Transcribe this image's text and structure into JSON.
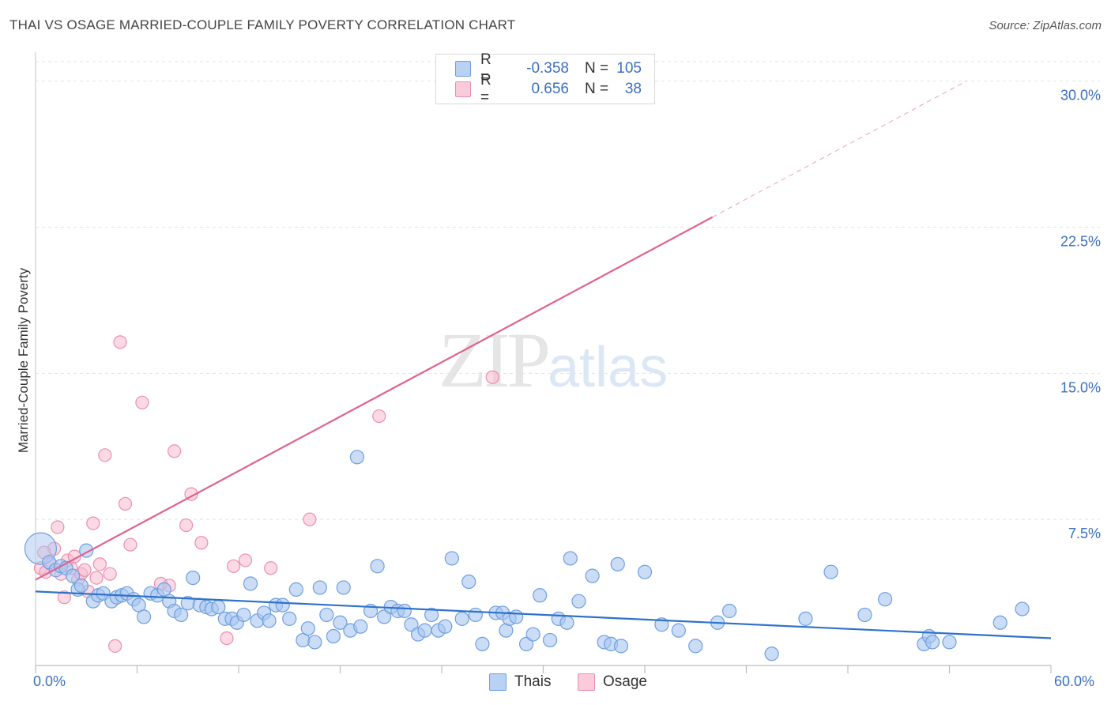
{
  "header": {
    "title": "THAI VS OSAGE MARRIED-COUPLE FAMILY POVERTY CORRELATION CHART",
    "source": "Source: ZipAtlas.com"
  },
  "watermark": {
    "zip": "ZIP",
    "atlas": "atlas"
  },
  "colors": {
    "thais_fill": "#a9c6f0",
    "thais_stroke": "#6e9fe0",
    "thais_line": "#2f72c9",
    "osage_fill": "#f8bcd0",
    "osage_stroke": "#eb8fae",
    "osage_line": "#e0628f",
    "tick_label": "#3a6fc4",
    "grid": "#e3e3e3"
  },
  "legend": {
    "rows": [
      {
        "series": "Thais",
        "r_label": "R =",
        "r_value": "-0.358",
        "n_label": "N =",
        "n_value": "105"
      },
      {
        "series": "Osage",
        "r_label": "R =",
        "r_value": "0.656",
        "n_label": "N =",
        "n_value": "38"
      }
    ]
  },
  "bottom_legend": {
    "thais": "Thais",
    "osage": "Osage"
  },
  "chart_data": {
    "type": "scatter",
    "title": "THAI VS OSAGE MARRIED-COUPLE FAMILY POVERTY CORRELATION CHART",
    "xlabel": "",
    "ylabel": "Married-Couple Family Poverty",
    "xlim": [
      0,
      60
    ],
    "ylim": [
      0,
      31
    ],
    "x_tick_labels": [
      "0.0%",
      "60.0%"
    ],
    "y_ticks": [
      7.5,
      15.0,
      22.5,
      30.0
    ],
    "y_tick_labels": [
      "7.5%",
      "15.0%",
      "22.5%",
      "30.0%"
    ],
    "grid": true,
    "series": [
      {
        "name": "Thais",
        "r": -0.358,
        "n": 105,
        "trend": {
          "x0": 0,
          "y0": 3.8,
          "x1": 60,
          "y1": 1.4,
          "dashed_from": null
        },
        "points": [
          {
            "x": 0.3,
            "y": 6.0,
            "big": true
          },
          {
            "x": 0.8,
            "y": 5.3
          },
          {
            "x": 1.2,
            "y": 4.9
          },
          {
            "x": 1.5,
            "y": 5.1
          },
          {
            "x": 1.8,
            "y": 5.0
          },
          {
            "x": 2.2,
            "y": 4.6
          },
          {
            "x": 2.5,
            "y": 3.9
          },
          {
            "x": 2.7,
            "y": 4.1
          },
          {
            "x": 3.0,
            "y": 5.9
          },
          {
            "x": 3.4,
            "y": 3.3
          },
          {
            "x": 3.7,
            "y": 3.6
          },
          {
            "x": 4.0,
            "y": 3.7
          },
          {
            "x": 4.5,
            "y": 3.3
          },
          {
            "x": 4.8,
            "y": 3.5
          },
          {
            "x": 5.1,
            "y": 3.6
          },
          {
            "x": 5.4,
            "y": 3.7
          },
          {
            "x": 5.8,
            "y": 3.4
          },
          {
            "x": 6.1,
            "y": 3.1
          },
          {
            "x": 6.4,
            "y": 2.5
          },
          {
            "x": 6.8,
            "y": 3.7
          },
          {
            "x": 7.2,
            "y": 3.6
          },
          {
            "x": 7.6,
            "y": 3.9
          },
          {
            "x": 7.9,
            "y": 3.3
          },
          {
            "x": 8.2,
            "y": 2.8
          },
          {
            "x": 8.6,
            "y": 2.6
          },
          {
            "x": 9.0,
            "y": 3.2
          },
          {
            "x": 9.3,
            "y": 4.5
          },
          {
            "x": 9.7,
            "y": 3.1
          },
          {
            "x": 10.1,
            "y": 3.0
          },
          {
            "x": 10.4,
            "y": 2.9
          },
          {
            "x": 10.8,
            "y": 3.0
          },
          {
            "x": 11.2,
            "y": 2.4
          },
          {
            "x": 11.6,
            "y": 2.4
          },
          {
            "x": 11.9,
            "y": 2.2
          },
          {
            "x": 12.3,
            "y": 2.6
          },
          {
            "x": 12.7,
            "y": 4.2
          },
          {
            "x": 13.1,
            "y": 2.3
          },
          {
            "x": 13.5,
            "y": 2.7
          },
          {
            "x": 13.8,
            "y": 2.3
          },
          {
            "x": 14.2,
            "y": 3.1
          },
          {
            "x": 14.6,
            "y": 3.1
          },
          {
            "x": 15.0,
            "y": 2.4
          },
          {
            "x": 15.4,
            "y": 3.9
          },
          {
            "x": 15.8,
            "y": 1.3
          },
          {
            "x": 16.1,
            "y": 1.9
          },
          {
            "x": 16.5,
            "y": 1.2
          },
          {
            "x": 16.8,
            "y": 4.0
          },
          {
            "x": 17.2,
            "y": 2.6
          },
          {
            "x": 17.6,
            "y": 1.5
          },
          {
            "x": 18.0,
            "y": 2.2
          },
          {
            "x": 18.2,
            "y": 4.0
          },
          {
            "x": 18.6,
            "y": 1.8
          },
          {
            "x": 19.2,
            "y": 2.0
          },
          {
            "x": 19.8,
            "y": 2.8
          },
          {
            "x": 20.2,
            "y": 5.1
          },
          {
            "x": 20.6,
            "y": 2.5
          },
          {
            "x": 21.0,
            "y": 3.0
          },
          {
            "x": 21.4,
            "y": 2.8
          },
          {
            "x": 21.8,
            "y": 2.8
          },
          {
            "x": 19.0,
            "y": 10.7
          },
          {
            "x": 22.2,
            "y": 2.1
          },
          {
            "x": 22.6,
            "y": 1.6
          },
          {
            "x": 23.0,
            "y": 1.8
          },
          {
            "x": 23.4,
            "y": 2.6
          },
          {
            "x": 23.8,
            "y": 1.8
          },
          {
            "x": 24.2,
            "y": 2.0
          },
          {
            "x": 24.6,
            "y": 5.5
          },
          {
            "x": 25.2,
            "y": 2.4
          },
          {
            "x": 25.6,
            "y": 4.3
          },
          {
            "x": 26.0,
            "y": 2.6
          },
          {
            "x": 26.4,
            "y": 1.1
          },
          {
            "x": 27.2,
            "y": 2.7
          },
          {
            "x": 27.6,
            "y": 2.7
          },
          {
            "x": 27.8,
            "y": 1.8
          },
          {
            "x": 28.0,
            "y": 2.4
          },
          {
            "x": 28.4,
            "y": 2.5
          },
          {
            "x": 29.0,
            "y": 1.1
          },
          {
            "x": 29.4,
            "y": 1.6
          },
          {
            "x": 29.8,
            "y": 3.6
          },
          {
            "x": 30.4,
            "y": 1.3
          },
          {
            "x": 30.9,
            "y": 2.4
          },
          {
            "x": 31.4,
            "y": 2.2
          },
          {
            "x": 31.6,
            "y": 5.5
          },
          {
            "x": 32.1,
            "y": 3.3
          },
          {
            "x": 32.9,
            "y": 4.6
          },
          {
            "x": 33.6,
            "y": 1.2
          },
          {
            "x": 34.0,
            "y": 1.1
          },
          {
            "x": 34.4,
            "y": 5.2
          },
          {
            "x": 34.6,
            "y": 1.0
          },
          {
            "x": 36.0,
            "y": 4.8
          },
          {
            "x": 37.0,
            "y": 2.1
          },
          {
            "x": 38.0,
            "y": 1.8
          },
          {
            "x": 39.0,
            "y": 1.0
          },
          {
            "x": 40.3,
            "y": 2.2
          },
          {
            "x": 41.0,
            "y": 2.8
          },
          {
            "x": 43.5,
            "y": 0.6
          },
          {
            "x": 45.5,
            "y": 2.4
          },
          {
            "x": 47.0,
            "y": 4.8
          },
          {
            "x": 49.0,
            "y": 2.6
          },
          {
            "x": 50.2,
            "y": 3.4
          },
          {
            "x": 52.5,
            "y": 1.1
          },
          {
            "x": 52.8,
            "y": 1.5
          },
          {
            "x": 53.0,
            "y": 1.2
          },
          {
            "x": 54.0,
            "y": 1.2
          },
          {
            "x": 57.0,
            "y": 2.2
          },
          {
            "x": 58.3,
            "y": 2.9
          }
        ]
      },
      {
        "name": "Osage",
        "r": 0.656,
        "n": 38,
        "trend": {
          "x0": 0,
          "y0": 4.4,
          "x1": 55,
          "y1": 30,
          "dashed_from": 40
        },
        "points": [
          {
            "x": 0.3,
            "y": 5.0
          },
          {
            "x": 0.6,
            "y": 4.8
          },
          {
            "x": 0.9,
            "y": 5.2
          },
          {
            "x": 1.1,
            "y": 6.0
          },
          {
            "x": 1.3,
            "y": 7.1
          },
          {
            "x": 1.5,
            "y": 4.7
          },
          {
            "x": 1.7,
            "y": 3.5
          },
          {
            "x": 1.9,
            "y": 5.4
          },
          {
            "x": 2.1,
            "y": 5.0
          },
          {
            "x": 2.3,
            "y": 5.6
          },
          {
            "x": 2.5,
            "y": 4.4
          },
          {
            "x": 2.7,
            "y": 4.7
          },
          {
            "x": 2.9,
            "y": 4.9
          },
          {
            "x": 3.1,
            "y": 3.8
          },
          {
            "x": 3.4,
            "y": 7.3
          },
          {
            "x": 3.6,
            "y": 4.5
          },
          {
            "x": 3.8,
            "y": 5.2
          },
          {
            "x": 4.1,
            "y": 10.8
          },
          {
            "x": 4.4,
            "y": 4.7
          },
          {
            "x": 4.7,
            "y": 1.0
          },
          {
            "x": 5.0,
            "y": 16.6
          },
          {
            "x": 5.3,
            "y": 8.3
          },
          {
            "x": 5.6,
            "y": 6.2
          },
          {
            "x": 6.3,
            "y": 13.5
          },
          {
            "x": 7.4,
            "y": 4.2
          },
          {
            "x": 7.9,
            "y": 4.1
          },
          {
            "x": 8.2,
            "y": 11.0
          },
          {
            "x": 8.9,
            "y": 7.2
          },
          {
            "x": 9.2,
            "y": 8.8
          },
          {
            "x": 9.8,
            "y": 6.3
          },
          {
            "x": 11.3,
            "y": 1.4
          },
          {
            "x": 11.7,
            "y": 5.1
          },
          {
            "x": 12.4,
            "y": 5.4
          },
          {
            "x": 13.9,
            "y": 5.0
          },
          {
            "x": 16.2,
            "y": 7.5
          },
          {
            "x": 20.3,
            "y": 12.8
          },
          {
            "x": 27.0,
            "y": 14.8
          },
          {
            "x": 0.5,
            "y": 5.8
          }
        ]
      }
    ]
  }
}
